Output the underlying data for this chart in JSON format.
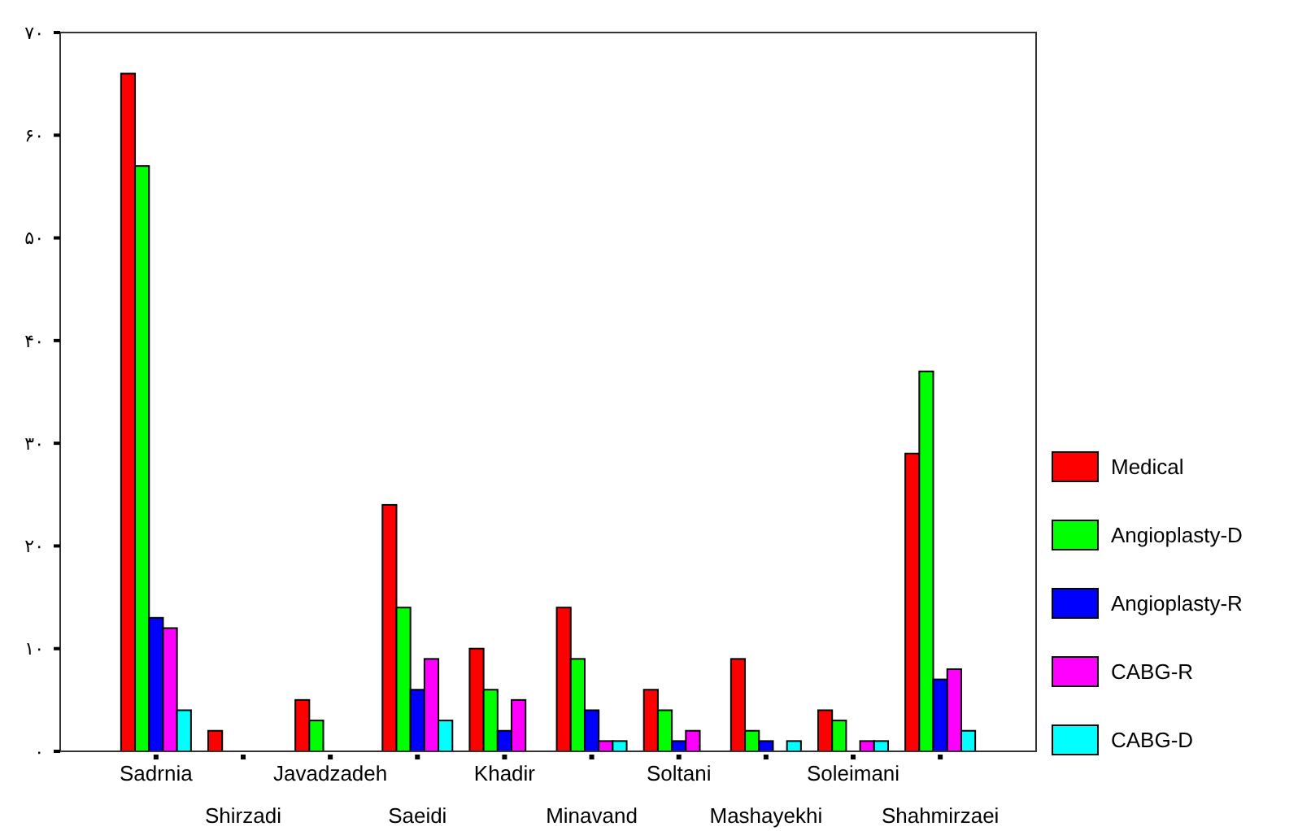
{
  "chart_data": {
    "type": "bar",
    "categories": [
      "Sadrnia",
      "Shirzadi",
      "Javadzadeh",
      "Saeidi",
      "Khadir",
      "Minavand",
      "Soltani",
      "Mashayekhi",
      "Soleimani",
      "Shahmirzaei"
    ],
    "series": [
      {
        "name": "Medical",
        "color": "#ff0000",
        "values": [
          66,
          2,
          5,
          24,
          10,
          14,
          6,
          9,
          4,
          29
        ]
      },
      {
        "name": "Angioplasty-D",
        "color": "#00ff00",
        "values": [
          57,
          0,
          3,
          14,
          6,
          9,
          4,
          2,
          3,
          37
        ]
      },
      {
        "name": "Angioplasty-R",
        "color": "#0000ff",
        "values": [
          13,
          0,
          0,
          6,
          2,
          4,
          1,
          1,
          0,
          7
        ]
      },
      {
        "name": "CABG-R",
        "color": "#ff00ff",
        "values": [
          12,
          0,
          0,
          9,
          5,
          1,
          2,
          0,
          1,
          8
        ]
      },
      {
        "name": "CABG-D",
        "color": "#00ffff",
        "values": [
          4,
          0,
          0,
          3,
          0,
          1,
          0,
          1,
          1,
          2
        ]
      }
    ],
    "ylim": [
      0,
      70
    ],
    "yticks": [
      {
        "value": 0,
        "label": "۰"
      },
      {
        "value": 10,
        "label": "۱۰"
      },
      {
        "value": 20,
        "label": "۲۰"
      },
      {
        "value": 30,
        "label": "۳۰"
      },
      {
        "value": 40,
        "label": "۴۰"
      },
      {
        "value": 50,
        "label": "۵۰"
      },
      {
        "value": 60,
        "label": "۶۰"
      },
      {
        "value": 70,
        "label": "۷۰"
      }
    ],
    "grid": false,
    "legend": "right"
  }
}
